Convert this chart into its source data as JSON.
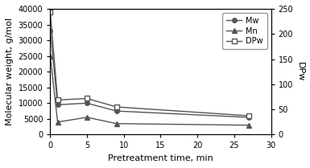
{
  "x": [
    0,
    1,
    5,
    9,
    27
  ],
  "Mw": [
    33000,
    9500,
    10000,
    7500,
    5500
  ],
  "Mn": [
    25000,
    4000,
    5500,
    3500,
    3000
  ],
  "DPw_left": [
    39000,
    11000,
    11500,
    8800,
    6000
  ],
  "xlabel": "Pretreatment time, min",
  "ylabel_left": "Molecular weight, g/mol",
  "ylabel_right": "DPw",
  "xlim": [
    0,
    30
  ],
  "ylim_left": [
    0,
    40000
  ],
  "ylim_right": [
    0,
    250
  ],
  "xticks": [
    0,
    5,
    10,
    15,
    20,
    25,
    30
  ],
  "yticks_left": [
    0,
    5000,
    10000,
    15000,
    20000,
    25000,
    30000,
    35000,
    40000
  ],
  "yticks_right": [
    0,
    50,
    100,
    150,
    200,
    250
  ],
  "legend_labels": [
    "Mw",
    "Mn",
    "DPw"
  ],
  "line_color": "#555555",
  "marker_Mw": "o",
  "marker_Mn": "^",
  "marker_DPw": "s",
  "markersize": 4,
  "linewidth": 1.0,
  "scale_factor": 160.0
}
